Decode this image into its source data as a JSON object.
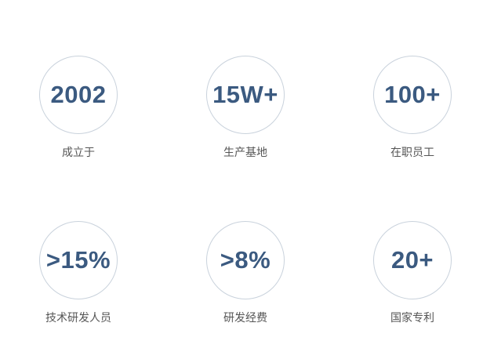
{
  "stats": [
    {
      "value": "2002",
      "label": "成立于"
    },
    {
      "value": "15W+",
      "label": "生产基地"
    },
    {
      "value": "100+",
      "label": "在职员工"
    },
    {
      "value": ">15%",
      "label": "技术研发人员"
    },
    {
      "value": ">8%",
      "label": "研发经费"
    },
    {
      "value": "20+",
      "label": "国家专利"
    }
  ],
  "colors": {
    "number": "#3b5a80",
    "circle_border": "#c9d2dc",
    "label": "#555555"
  }
}
